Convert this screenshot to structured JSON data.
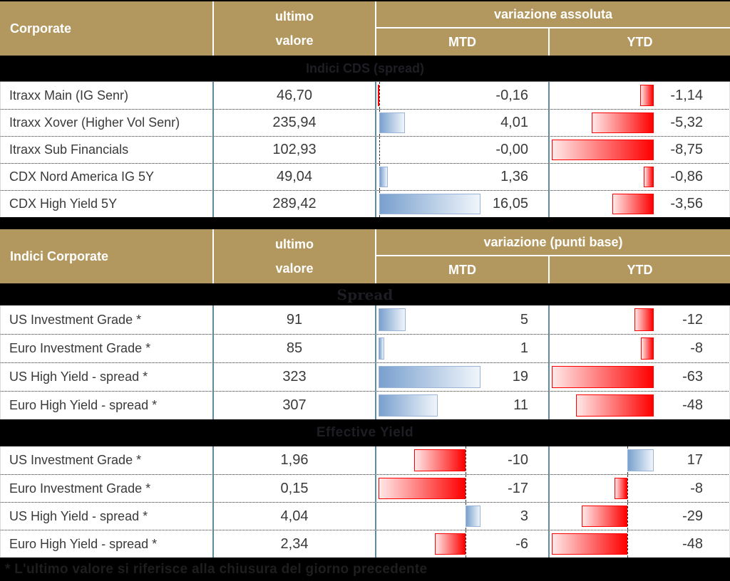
{
  "colors": {
    "header_gold": "#B2985F",
    "grid_line_blue": "#5E8C9E",
    "bar_positive_blue": "#79A0CE",
    "bar_negative_red": "#FE0000",
    "band_background": "#000000"
  },
  "footer_note": "* L'ultimo valore si riferisce alla chiusura del giorno precedente",
  "tables": [
    {
      "corner_label": "Corporate",
      "value_header_line1": "ultimo",
      "value_header_line2": "valore",
      "variation_header": "variazione assoluta",
      "mtd_header": "MTD",
      "ytd_header": "YTD",
      "sections": [
        {
          "title": "Indici CDS (spread)",
          "rows": [
            {
              "label": "Itraxx Main (IG Senr)",
              "value": "46,70",
              "mtd": -0.16,
              "mtd_text": "-0,16",
              "ytd": -1.14,
              "ytd_text": "-1,14"
            },
            {
              "label": "Itraxx Xover (Higher Vol Senr)",
              "value": "235,94",
              "mtd": 4.01,
              "mtd_text": "4,01",
              "ytd": -5.32,
              "ytd_text": "-5,32"
            },
            {
              "label": "Itraxx Sub Financials",
              "value": "102,93",
              "mtd": 0,
              "mtd_text": "-0,00",
              "ytd": -8.75,
              "ytd_text": "-8,75"
            },
            {
              "label": "CDX Nord America IG 5Y",
              "value": "49,04",
              "mtd": 1.36,
              "mtd_text": "1,36",
              "ytd": -0.86,
              "ytd_text": "-0,86"
            },
            {
              "label": "CDX High Yield 5Y",
              "value": "289,42",
              "mtd": 16.05,
              "mtd_text": "16,05",
              "ytd": -3.56,
              "ytd_text": "-3,56"
            }
          ]
        }
      ]
    },
    {
      "corner_label": "Indici Corporate",
      "value_header_line1": "ultimo",
      "value_header_line2": "valore",
      "variation_header": "variazione (punti base)",
      "mtd_header": "MTD",
      "ytd_header": "YTD",
      "sections": [
        {
          "title": "Spread",
          "rows": [
            {
              "label": "US Investment Grade *",
              "value": "91",
              "mtd": 5,
              "mtd_text": "5",
              "ytd": -12,
              "ytd_text": "-12"
            },
            {
              "label": "Euro Investment Grade *",
              "value": "85",
              "mtd": 1,
              "mtd_text": "1",
              "ytd": -8,
              "ytd_text": "-8"
            },
            {
              "label": "US High Yield  - spread *",
              "value": "323",
              "mtd": 19,
              "mtd_text": "19",
              "ytd": -63,
              "ytd_text": "-63"
            },
            {
              "label": "Euro High Yield  - spread *",
              "value": "307",
              "mtd": 11,
              "mtd_text": "11",
              "ytd": -48,
              "ytd_text": "-48"
            }
          ]
        },
        {
          "title": "Effective Yield",
          "rows": [
            {
              "label": "US Investment Grade *",
              "value": "1,96",
              "mtd": -10,
              "mtd_text": "-10",
              "ytd": 17,
              "ytd_text": "17"
            },
            {
              "label": "Euro Investment Grade *",
              "value": "0,15",
              "mtd": -17,
              "mtd_text": "-17",
              "ytd": -8,
              "ytd_text": "-8"
            },
            {
              "label": "US High Yield  - spread *",
              "value": "4,04",
              "mtd": 3,
              "mtd_text": "3",
              "ytd": -29,
              "ytd_text": "-29"
            },
            {
              "label": "Euro High Yield  - spread *",
              "value": "2,34",
              "mtd": -6,
              "mtd_text": "-6",
              "ytd": -48,
              "ytd_text": "-48"
            }
          ]
        }
      ]
    }
  ],
  "chart_data": [
    {
      "type": "table",
      "title": "Corporate - Indici CDS (spread)",
      "columns": [
        "indice",
        "ultimo valore",
        "variazione assoluta MTD",
        "variazione assoluta YTD"
      ],
      "rows": [
        [
          "Itraxx Main (IG Senr)",
          46.7,
          -0.16,
          -1.14
        ],
        [
          "Itraxx Xover (Higher Vol Senr)",
          235.94,
          4.01,
          -5.32
        ],
        [
          "Itraxx Sub Financials",
          102.93,
          -0.0,
          -8.75
        ],
        [
          "CDX Nord America IG 5Y",
          49.04,
          1.36,
          -0.86
        ],
        [
          "CDX High Yield 5Y",
          289.42,
          16.05,
          -3.56
        ]
      ],
      "bar_encoding": "MTD/YTD cells contain horizontal data bars: blue gradient for positive values, red gradient for negative values, scaled per column"
    },
    {
      "type": "table",
      "title": "Indici Corporate - Spread (variazione punti base)",
      "columns": [
        "indice",
        "ultimo valore",
        "MTD",
        "YTD"
      ],
      "rows": [
        [
          "US Investment Grade *",
          91,
          5,
          -12
        ],
        [
          "Euro Investment Grade *",
          85,
          1,
          -8
        ],
        [
          "US High Yield - spread *",
          323,
          19,
          -63
        ],
        [
          "Euro High Yield - spread *",
          307,
          11,
          -48
        ]
      ]
    },
    {
      "type": "table",
      "title": "Indici Corporate - Effective Yield (variazione punti base)",
      "columns": [
        "indice",
        "ultimo valore",
        "MTD",
        "YTD"
      ],
      "rows": [
        [
          "US Investment Grade *",
          1.96,
          -10,
          17
        ],
        [
          "Euro Investment Grade *",
          0.15,
          -17,
          -8
        ],
        [
          "US High Yield - spread *",
          4.04,
          3,
          -29
        ],
        [
          "Euro High Yield - spread *",
          2.34,
          -6,
          -48
        ]
      ]
    }
  ]
}
